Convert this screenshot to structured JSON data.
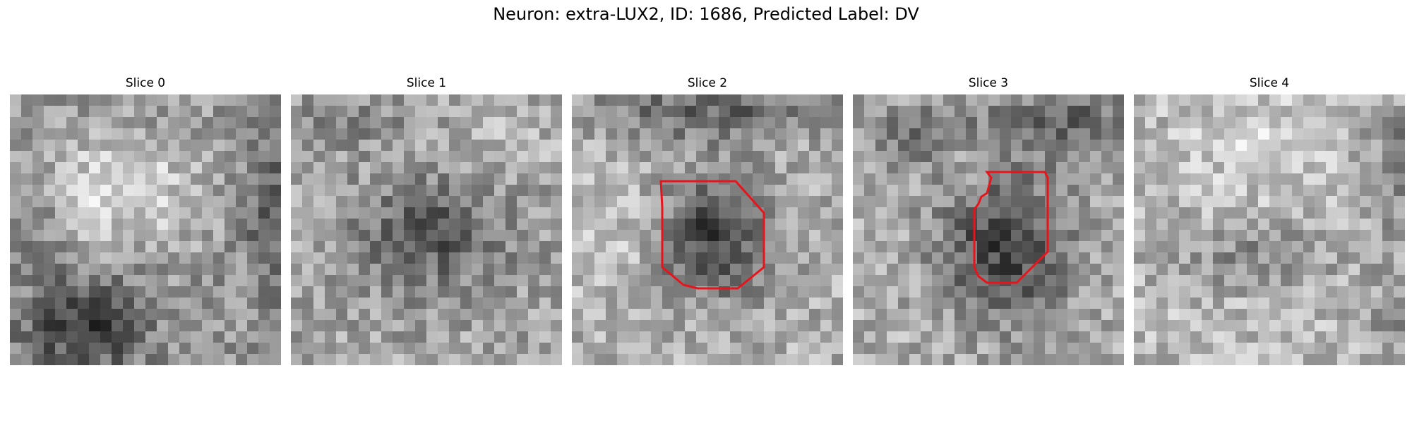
{
  "figure": {
    "title": "Neuron: extra-LUX2, ID: 1686, Predicted Label: DV"
  },
  "slices": [
    {
      "title": "Slice 0",
      "has_contour": false
    },
    {
      "title": "Slice 1",
      "has_contour": false
    },
    {
      "title": "Slice 2",
      "has_contour": true
    },
    {
      "title": "Slice 3",
      "has_contour": true
    },
    {
      "title": "Slice 4",
      "has_contour": false
    }
  ],
  "colors": {
    "contour": "#e8141b"
  }
}
